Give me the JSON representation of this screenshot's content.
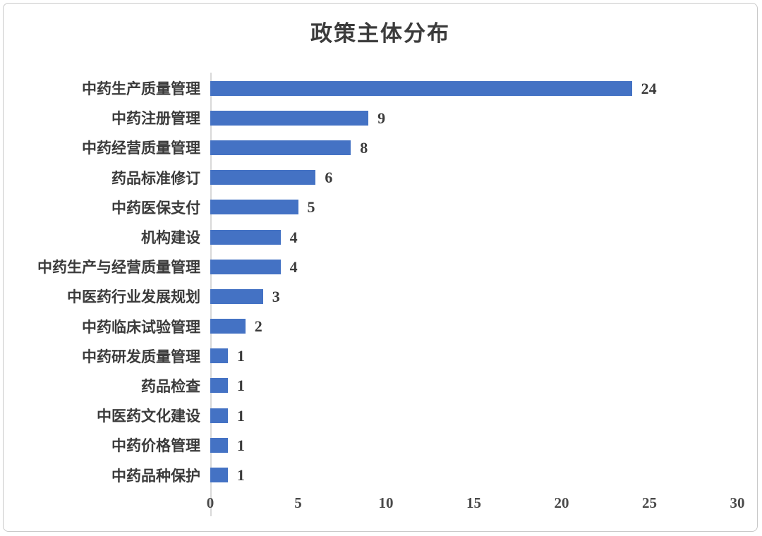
{
  "title": "政策主体分布",
  "colors": {
    "bar": "#4472C4",
    "title_text": "#3B3B3B",
    "label_text": "#3B3B3B",
    "value_text": "#3B3B3B",
    "tick_text": "#4A4A4A",
    "axis_line": "#D9D9D9",
    "frame_border": "#C8C8C8",
    "background": "#FFFFFF"
  },
  "chart_data": {
    "type": "bar",
    "orientation": "horizontal",
    "title": "政策主体分布",
    "categories": [
      "中药生产质量管理",
      "中药注册管理",
      "中药经营质量管理",
      "药品标准修订",
      "中药医保支付",
      "机构建设",
      "中药生产与经营质量管理",
      "中医药行业发展规划",
      "中药临床试验管理",
      "中药研发质量管理",
      "药品检查",
      "中医药文化建设",
      "中药价格管理",
      "中药品种保护"
    ],
    "values": [
      24,
      9,
      8,
      6,
      5,
      4,
      4,
      3,
      2,
      1,
      1,
      1,
      1,
      1
    ],
    "xlabel": "",
    "ylabel": "",
    "xlim": [
      0,
      30
    ],
    "xticks": [
      0,
      5,
      10,
      15,
      20,
      25,
      30
    ],
    "data_labels": true,
    "grid": false,
    "legend": false
  }
}
